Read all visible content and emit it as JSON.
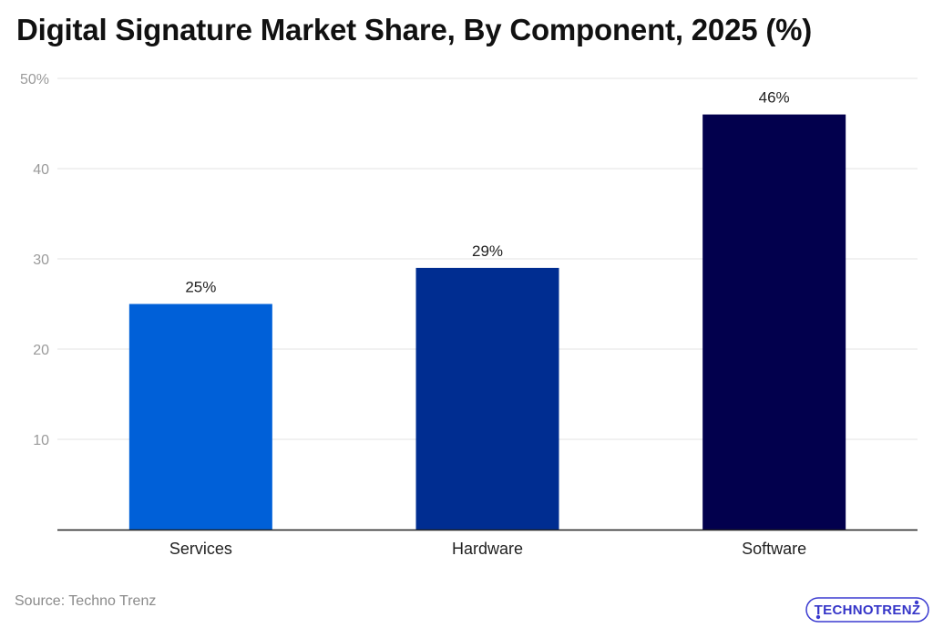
{
  "title": "Digital Signature Market Share, By Component, 2025 (%)",
  "source": "Source: Techno Trenz",
  "logo_text": "TECHNOTRENZ",
  "chart_data": {
    "type": "bar",
    "title": "Digital Signature Market Share, By Component, 2025 (%)",
    "xlabel": "",
    "ylabel": "",
    "categories": [
      "Services",
      "Hardware",
      "Software"
    ],
    "values": [
      25,
      29,
      46
    ],
    "data_labels": [
      "25%",
      "29%",
      "46%"
    ],
    "bar_colors": [
      "#0060d8",
      "#002d91",
      "#02004d"
    ],
    "ylim": [
      0,
      50
    ],
    "yticks": [
      10,
      20,
      30,
      40,
      50
    ],
    "ytick_labels": [
      "10",
      "20",
      "30",
      "40",
      "50%"
    ],
    "grid": true,
    "legend": "none"
  }
}
